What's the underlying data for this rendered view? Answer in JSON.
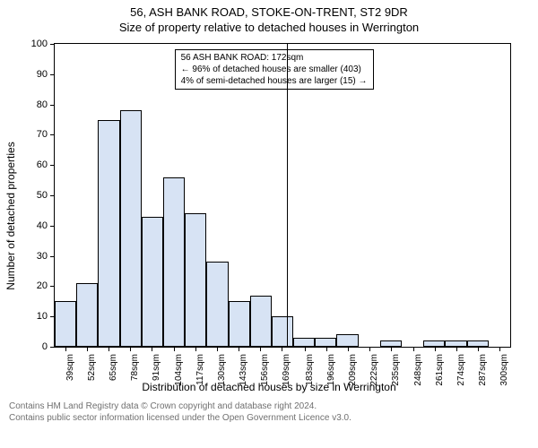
{
  "titles": {
    "line1": "56, ASH BANK ROAD, STOKE-ON-TRENT, ST2 9DR",
    "line2": "Size of property relative to detached houses in Werrington"
  },
  "chart": {
    "type": "histogram",
    "ylabel": "Number of detached properties",
    "xlabel": "Distribution of detached houses by size in Werrington",
    "ylim": [
      0,
      100
    ],
    "ytick_step": 10,
    "xticks": [
      39,
      52,
      65,
      78,
      91,
      104,
      117,
      130,
      143,
      156,
      169,
      183,
      196,
      209,
      222,
      235,
      248,
      261,
      274,
      287,
      300
    ],
    "xtick_suffix": "sqm",
    "bar_range": [
      32.5,
      306.5
    ],
    "bars": [
      15,
      21,
      75,
      78,
      43,
      56,
      44,
      28,
      15,
      17,
      10,
      3,
      3,
      4,
      0,
      2,
      0,
      2,
      2,
      2,
      0
    ],
    "bar_fill": "#d7e3f4",
    "bar_stroke": "#000000",
    "reference_x": 172,
    "tick_fontsize": 10,
    "axis_fontsize": 12,
    "background_color": "#ffffff"
  },
  "annotation": {
    "line1": "56 ASH BANK ROAD: 172sqm",
    "line2": "← 96% of detached houses are smaller (403)",
    "line3": "4% of semi-detached houses are larger (15) →"
  },
  "disclaimer": {
    "line1": "Contains HM Land Registry data © Crown copyright and database right 2024.",
    "line2": "Contains public sector information licensed under the Open Government Licence v3.0."
  }
}
